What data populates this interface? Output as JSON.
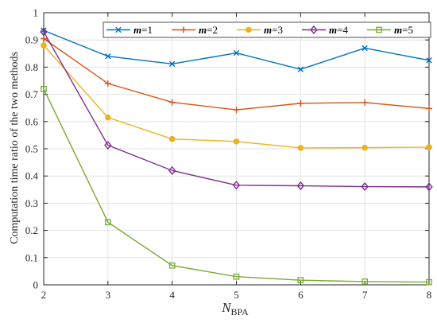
{
  "chart_data": {
    "type": "line",
    "title": "",
    "xlabel_main": "N",
    "xlabel_sub": "BPA",
    "ylabel": "Computation time ratio of the two methods",
    "x": [
      2,
      3,
      4,
      5,
      6,
      7,
      8
    ],
    "xlim": [
      2,
      8
    ],
    "ylim": [
      0,
      1
    ],
    "xticks": [
      "2",
      "3",
      "4",
      "5",
      "6",
      "7",
      "8"
    ],
    "yticks": [
      "0",
      "0.1",
      "0.2",
      "0.3",
      "0.4",
      "0.5",
      "0.6",
      "0.7",
      "0.8",
      "0.9",
      "1"
    ],
    "grid": true,
    "legend_position": "top-right",
    "series": [
      {
        "name_italic": "m",
        "name_rest": "=1",
        "color": "#0072BD",
        "marker": "x",
        "values": [
          0.935,
          0.84,
          0.812,
          0.852,
          0.792,
          0.87,
          0.825
        ]
      },
      {
        "name_italic": "m",
        "name_rest": "=2",
        "color": "#D95319",
        "marker": "plus",
        "values": [
          0.905,
          0.74,
          0.671,
          0.643,
          0.667,
          0.67,
          0.648
        ]
      },
      {
        "name_italic": "m",
        "name_rest": "=3",
        "color": "#EDB120",
        "marker": "circle",
        "values": [
          0.88,
          0.615,
          0.536,
          0.527,
          0.503,
          0.504,
          0.506
        ]
      },
      {
        "name_italic": "m",
        "name_rest": "=4",
        "color": "#7E2F8E",
        "marker": "diamond",
        "values": [
          0.93,
          0.513,
          0.42,
          0.366,
          0.364,
          0.361,
          0.36
        ]
      },
      {
        "name_italic": "m",
        "name_rest": "=5",
        "color": "#77AC30",
        "marker": "square",
        "values": [
          0.72,
          0.23,
          0.071,
          0.03,
          0.017,
          0.012,
          0.01
        ]
      }
    ]
  }
}
